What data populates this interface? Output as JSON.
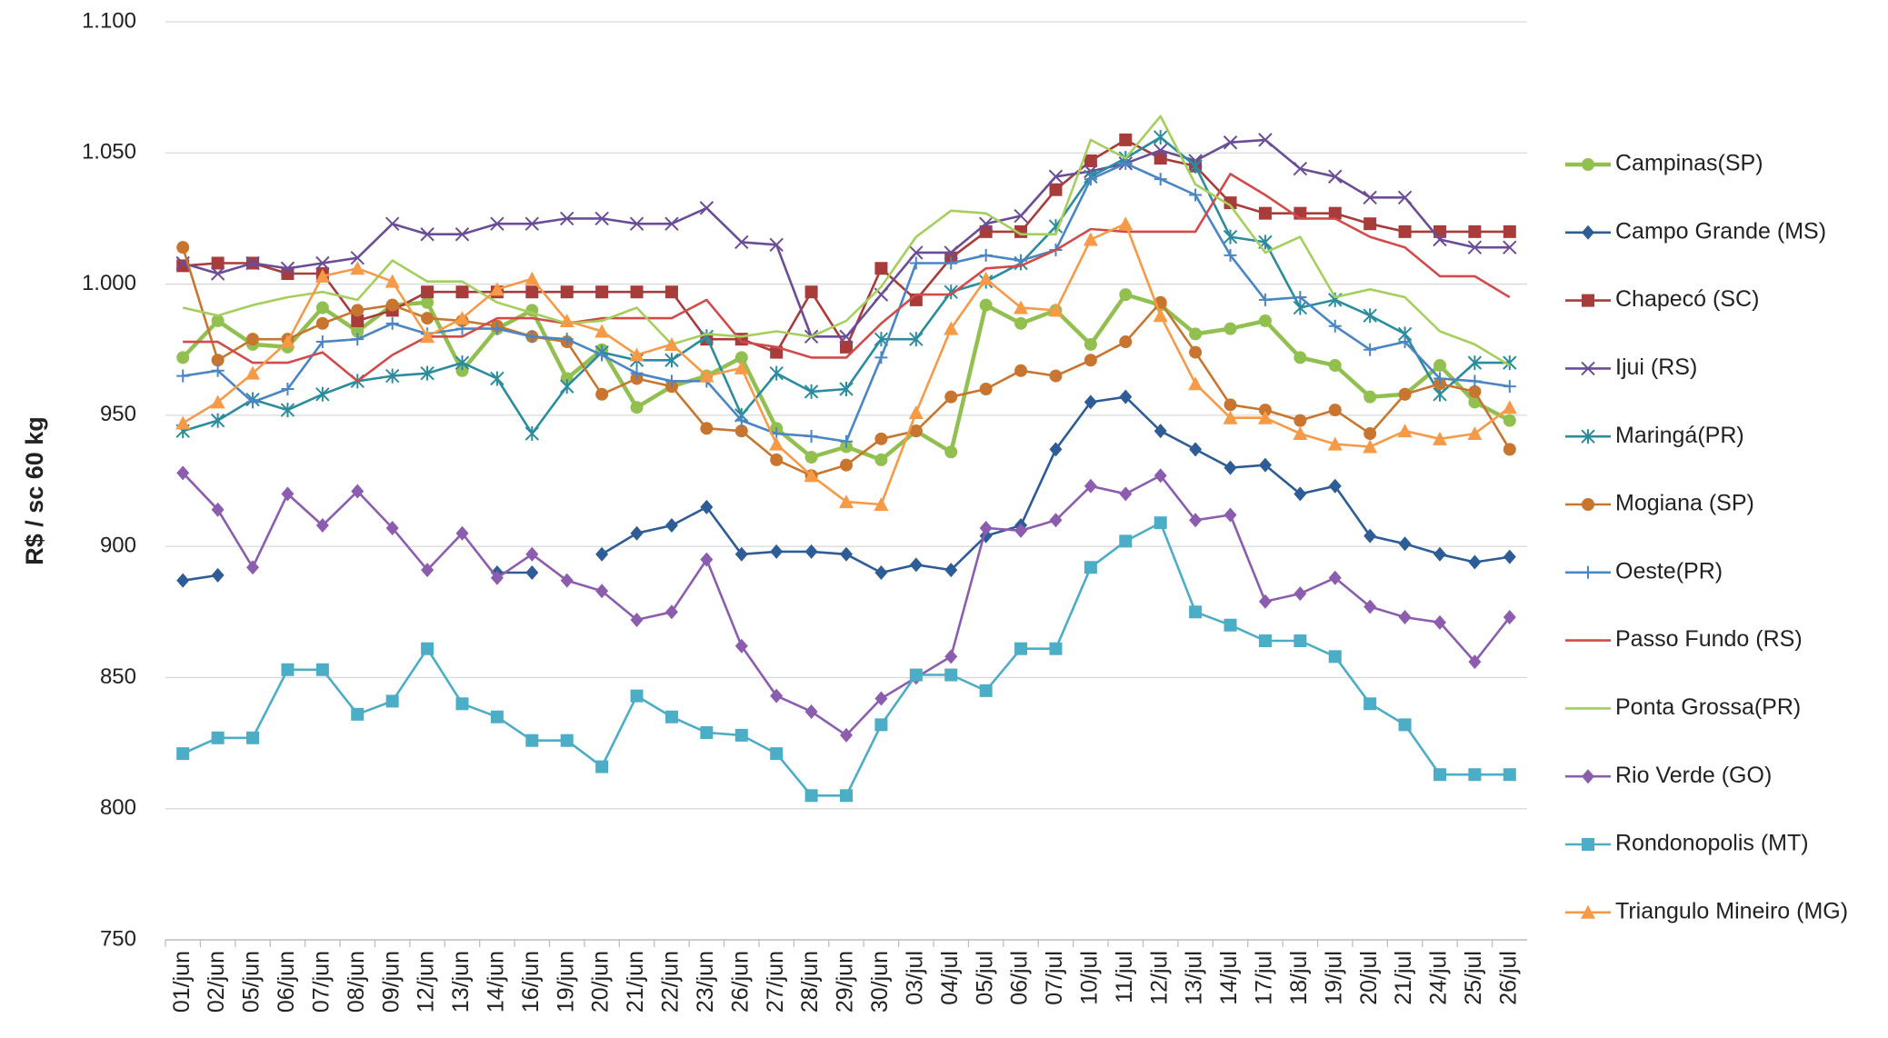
{
  "chart_data": {
    "type": "line",
    "y_label": "R$ / sc 60 kg",
    "categories": [
      "01/jun",
      "02/jun",
      "05/jun",
      "06/jun",
      "07/jun",
      "08/jun",
      "09/jun",
      "12/jun",
      "13/jun",
      "14/jun",
      "16/jun",
      "19/jun",
      "20/jun",
      "21/jun",
      "22/jun",
      "23/jun",
      "26/jun",
      "27/jun",
      "28/jun",
      "29/jun",
      "30/jun",
      "03/jul",
      "04/jul",
      "05/jul",
      "06/jul",
      "07/jul",
      "10/jul",
      "11/jul",
      "12/jul",
      "13/jul",
      "14/jul",
      "17/jul",
      "18/jul",
      "19/jul",
      "20/jul",
      "21/jul",
      "24/jul",
      "25/jul",
      "26/jul"
    ],
    "ylim": [
      750,
      1100
    ],
    "yticks": [
      750,
      800,
      850,
      900,
      950,
      {
        "value": 1000,
        "label": "1.000"
      },
      {
        "value": 1050,
        "label": "1.050"
      },
      {
        "value": 1100,
        "label": "1.100"
      }
    ],
    "grid": true,
    "legend": "right",
    "series": [
      {
        "name": "Campinas(SP)",
        "color": "#92c050",
        "marker": "circle",
        "width": 4.5,
        "values": [
          972,
          986,
          977,
          976,
          991,
          982,
          992,
          993,
          967,
          983,
          990,
          964,
          975,
          953,
          961,
          965,
          972,
          945,
          934,
          938,
          933,
          944,
          936,
          992,
          985,
          990,
          977,
          996,
          992,
          981,
          983,
          986,
          972,
          969,
          957,
          958,
          969,
          955,
          948
        ]
      },
      {
        "name": "Campo Grande (MS)",
        "color": "#2e5c96",
        "marker": "diamond",
        "width": 2.6,
        "values": [
          887,
          889,
          null,
          null,
          null,
          null,
          null,
          null,
          null,
          890,
          890,
          null,
          897,
          905,
          908,
          915,
          897,
          898,
          898,
          897,
          890,
          893,
          891,
          904,
          908,
          937,
          955,
          957,
          944,
          937,
          930,
          931,
          920,
          923,
          904,
          901,
          897,
          894,
          896
        ]
      },
      {
        "name": "Chapecó (SC)",
        "color": "#a83c3a",
        "marker": "square",
        "width": 2.6,
        "values": [
          1007,
          1008,
          1008,
          1004,
          1004,
          986,
          990,
          997,
          997,
          997,
          997,
          997,
          997,
          997,
          997,
          979,
          979,
          974,
          997,
          976,
          1006,
          994,
          1010,
          1020,
          1020,
          1036,
          1047,
          1055,
          1048,
          1045,
          1031,
          1027,
          1027,
          1027,
          1023,
          1020,
          1020,
          1020,
          1020
        ]
      },
      {
        "name": "Ijui (RS)",
        "color": "#6a4d96",
        "marker": "x",
        "width": 2.6,
        "values": [
          1008,
          1004,
          1008,
          1006,
          1008,
          1010,
          1023,
          1019,
          1019,
          1023,
          1023,
          1025,
          1025,
          1023,
          1023,
          1029,
          1016,
          1015,
          980,
          980,
          996,
          1012,
          1012,
          1023,
          1026,
          1041,
          1043,
          1046,
          1051,
          1047,
          1054,
          1055,
          1044,
          1041,
          1033,
          1033,
          1017,
          1014,
          1014
        ]
      },
      {
        "name": "Maringá(PR)",
        "color": "#2b8c9e",
        "marker": "star",
        "width": 2.6,
        "values": [
          944,
          948,
          956,
          952,
          958,
          963,
          965,
          966,
          970,
          964,
          943,
          961,
          974,
          971,
          971,
          980,
          950,
          966,
          959,
          960,
          979,
          979,
          997,
          1001,
          1008,
          1022,
          1041,
          1048,
          1056,
          1045,
          1018,
          1016,
          991,
          994,
          988,
          981,
          958,
          970,
          970
        ]
      },
      {
        "name": "Mogiana (SP)",
        "color": "#c8762f",
        "marker": "circle",
        "width": 2.6,
        "values": [
          1014,
          971,
          979,
          979,
          985,
          990,
          992,
          987,
          986,
          984,
          980,
          978,
          958,
          964,
          961,
          945,
          944,
          933,
          927,
          931,
          941,
          944,
          957,
          960,
          967,
          965,
          971,
          978,
          993,
          974,
          954,
          952,
          948,
          952,
          943,
          958,
          962,
          959,
          937
        ]
      },
      {
        "name": "Oeste(PR)",
        "color": "#4a85c4",
        "marker": "plus",
        "width": 2.6,
        "values": [
          965,
          967,
          955,
          960,
          978,
          979,
          985,
          981,
          983,
          983,
          980,
          979,
          973,
          966,
          963,
          963,
          948,
          943,
          942,
          940,
          972,
          1008,
          1008,
          1011,
          1009,
          1013,
          1040,
          1046,
          1040,
          1034,
          1011,
          994,
          995,
          984,
          975,
          978,
          964,
          963,
          961
        ]
      },
      {
        "name": "Passo Fundo (RS)",
        "color": "#d24b4b",
        "marker": "none",
        "width": 2.6,
        "values": [
          978,
          978,
          970,
          970,
          974,
          963,
          973,
          980,
          980,
          987,
          987,
          985,
          987,
          987,
          987,
          994,
          978,
          976,
          972,
          972,
          985,
          996,
          996,
          1006,
          1007,
          1013,
          1021,
          1020,
          1020,
          1020,
          1042,
          1034,
          1025,
          1025,
          1018,
          1014,
          1003,
          1003,
          995
        ]
      },
      {
        "name": "Ponta Grossa(PR)",
        "color": "#a5cf5c",
        "marker": "none",
        "width": 2.6,
        "values": [
          991,
          988,
          992,
          995,
          997,
          994,
          1009,
          1001,
          1001,
          993,
          989,
          985,
          986,
          991,
          977,
          981,
          980,
          982,
          980,
          986,
          999,
          1018,
          1028,
          1027,
          1019,
          1019,
          1055,
          1048,
          1064,
          1038,
          1030,
          1012,
          1018,
          995,
          998,
          995,
          982,
          977,
          969
        ]
      },
      {
        "name": "Rio Verde (GO)",
        "color": "#8c5daf",
        "marker": "diamond",
        "width": 2.6,
        "values": [
          928,
          914,
          892,
          920,
          908,
          921,
          907,
          891,
          905,
          888,
          897,
          887,
          883,
          872,
          875,
          895,
          862,
          843,
          837,
          828,
          842,
          850,
          858,
          907,
          906,
          910,
          923,
          920,
          927,
          910,
          912,
          879,
          882,
          888,
          877,
          873,
          871,
          856,
          873
        ]
      },
      {
        "name": "Rondonopolis (MT)",
        "color": "#4badc6",
        "marker": "square",
        "width": 2.6,
        "values": [
          821,
          827,
          827,
          853,
          853,
          836,
          841,
          861,
          840,
          835,
          826,
          826,
          816,
          843,
          835,
          829,
          828,
          821,
          805,
          805,
          832,
          851,
          851,
          845,
          861,
          861,
          892,
          902,
          909,
          875,
          870,
          864,
          864,
          858,
          840,
          832,
          813,
          813,
          813
        ]
      },
      {
        "name": "Triangulo Mineiro (MG)",
        "color": "#f79a48",
        "marker": "triangle",
        "width": 2.6,
        "values": [
          947,
          955,
          966,
          978,
          1003,
          1006,
          1001,
          980,
          987,
          998,
          1002,
          986,
          982,
          973,
          977,
          965,
          968,
          939,
          927,
          917,
          916,
          951,
          983,
          1002,
          991,
          990,
          1017,
          1023,
          988,
          962,
          949,
          949,
          943,
          939,
          938,
          944,
          941,
          943,
          953
        ]
      }
    ]
  }
}
